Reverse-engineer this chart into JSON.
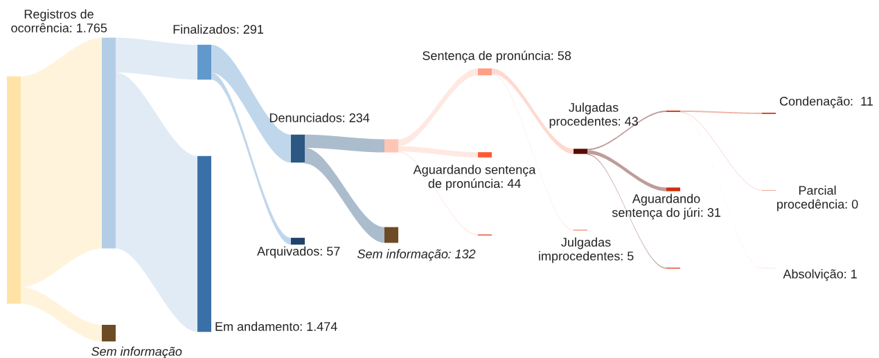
{
  "chart_data": {
    "type": "other",
    "categories": [
      null,
      "Registros de\nocorrência",
      "Sem informação",
      "Finalizados",
      "Em andamento",
      "Denunciados",
      "Arquivados",
      null,
      "Sem informação",
      "Sentença de pronúncia",
      "Aguardando sentença\nde pronúncia",
      null,
      "Julgadas\nprocedentes",
      "Julgadas\nimprocedentes",
      null,
      "Aguardando\nsentença do júri",
      null,
      "Condenação",
      "Parcial\nprocedência",
      "Absolvição"
    ],
    "values": [
      null,
      1765,
      null,
      291,
      1474,
      234,
      57,
      null,
      132,
      58,
      44,
      null,
      43,
      5,
      null,
      31,
      null,
      11,
      0,
      1
    ],
    "value_labels": [
      null,
      ": 1.765",
      null,
      ": 291",
      ": 1.474",
      ": 234",
      ": 57",
      null,
      ": 132",
      ": 58",
      ": 44",
      null,
      ": 43",
      ": 5",
      null,
      ": 31",
      null,
      ":  11",
      ": 0",
      ": 1"
    ],
    "colors": [
      "#ffe3a6",
      "#b4cde6",
      "#6e4b27",
      "#6199cd",
      "#3b6fa8",
      "#2c5783",
      "#22436b",
      "#ffc6b5",
      "#6e4b27",
      "#ff9f86",
      "#fd5a33",
      "#e8553a",
      "#5a0b02",
      "#e0532e",
      "#d9401d",
      "#d0300d",
      "#e0532e",
      "#d9401d",
      "#e87050",
      "#e0532e"
    ]
  }
}
